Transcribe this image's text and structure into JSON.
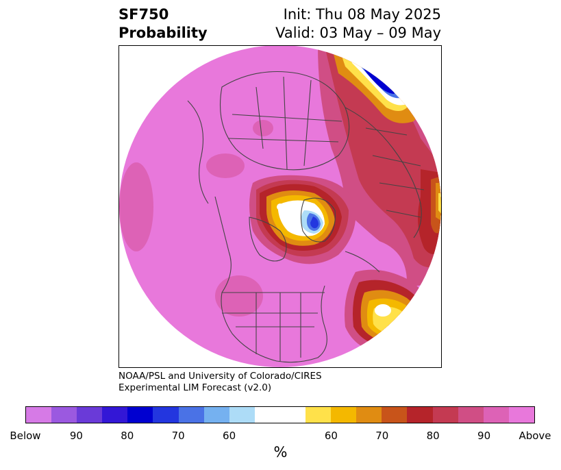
{
  "header": {
    "variable": "SF750",
    "product": "Probability",
    "init": "Init: Thu 08 May 2025",
    "valid": "Valid: 03 May – 09 May"
  },
  "credit": {
    "line1": "NOAA/PSL and University of Colorado/CIRES",
    "line2": "Experimental LIM Forecast (v2.0)"
  },
  "colorbar": {
    "colors": [
      "#d67ae6",
      "#9b59e0",
      "#6a3ad8",
      "#3317d6",
      "#0000d0",
      "#2336df",
      "#4a72e6",
      "#75b1f0",
      "#addcf7",
      "#ffffff",
      "#ffffff",
      "#ffe14a",
      "#f4b800",
      "#e08c12",
      "#c8541a",
      "#b5242a",
      "#c43a52",
      "#d04e85",
      "#dd62b6",
      "#e878db"
    ],
    "tick_labels": [
      "Below",
      "90",
      "80",
      "70",
      "60",
      "60",
      "70",
      "80",
      "90",
      "Above"
    ],
    "unit": "%"
  },
  "map": {
    "background_color": "#e878db"
  }
}
